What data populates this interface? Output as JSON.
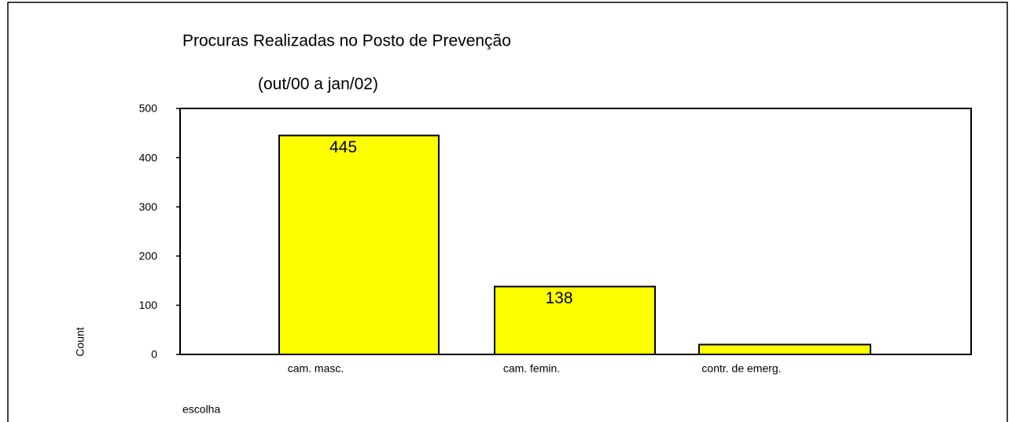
{
  "chart_data": {
    "type": "bar",
    "title": "Procuras Realizadas no Posto de Prevenção",
    "subtitle": "(out/00 a jan/02)",
    "x_label": "escolha",
    "y_label": "Count",
    "categories": [
      "cam. masc.",
      "cam. femin.",
      "contr. de emerg."
    ],
    "values": [
      445,
      138,
      20
    ],
    "value_labels": [
      "445",
      "138",
      null
    ],
    "color": "#ffff00",
    "ylim": [
      0,
      500
    ],
    "yticks": [
      0,
      100,
      200,
      300,
      400,
      500
    ]
  }
}
